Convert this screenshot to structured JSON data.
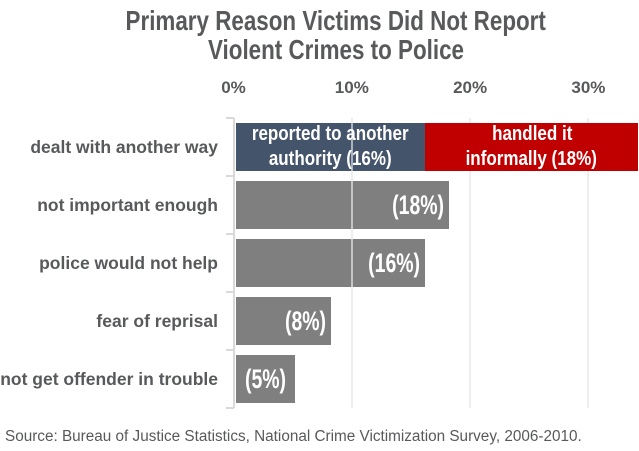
{
  "title": {
    "line1": "Primary Reason Victims Did Not Report",
    "line2": "Violent Crimes to Police"
  },
  "source": "Source: Bureau of Justice Statistics, National Crime Victimization Survey, 2006-2010.",
  "colors": {
    "blue": "#44546A",
    "red": "#C00000",
    "gray": "#7F7F7F",
    "gridline": "#D9D9D9",
    "text": "#58595B",
    "background": "#FFFFFF"
  },
  "chart_data": {
    "type": "bar",
    "orientation": "horizontal",
    "title": "Primary Reason Victims Did Not Report Violent Crimes to Police",
    "x_axis": {
      "ticks": [
        "0%",
        "10%",
        "20%",
        "30%"
      ],
      "tick_values": [
        0,
        10,
        20,
        30
      ],
      "position": "top",
      "max_shown": 34
    },
    "grid": true,
    "legend": false,
    "categories": [
      "dealt with another way",
      "not important enough",
      "police would not help",
      "fear of reprisal",
      "not get offender in trouble"
    ],
    "rows": [
      {
        "category": "dealt with another way",
        "segments": [
          {
            "name": "reported-to-another-authority",
            "label_lines": [
              "reported to another",
              "authority (16%)"
            ],
            "value": 16,
            "color": "#44546A"
          },
          {
            "name": "handled-it-informally",
            "label_lines": [
              "handled it",
              "informally (18%)"
            ],
            "value": 18,
            "color": "#C00000"
          }
        ]
      },
      {
        "category": "not important enough",
        "segments": [
          {
            "name": "not-important-enough",
            "label_lines": [
              "(18%)"
            ],
            "value": 18,
            "color": "#7F7F7F"
          }
        ]
      },
      {
        "category": "police would not help",
        "segments": [
          {
            "name": "police-would-not-help",
            "label_lines": [
              "(16%)"
            ],
            "value": 16,
            "color": "#7F7F7F"
          }
        ]
      },
      {
        "category": "fear of reprisal",
        "segments": [
          {
            "name": "fear-of-reprisal",
            "label_lines": [
              "(8%)"
            ],
            "value": 8,
            "color": "#7F7F7F"
          }
        ]
      },
      {
        "category": "not get offender in trouble",
        "segments": [
          {
            "name": "not-get-offender-in-trouble",
            "label_lines": [
              "(5%)"
            ],
            "value": 5,
            "color": "#7F7F7F"
          }
        ]
      }
    ]
  }
}
